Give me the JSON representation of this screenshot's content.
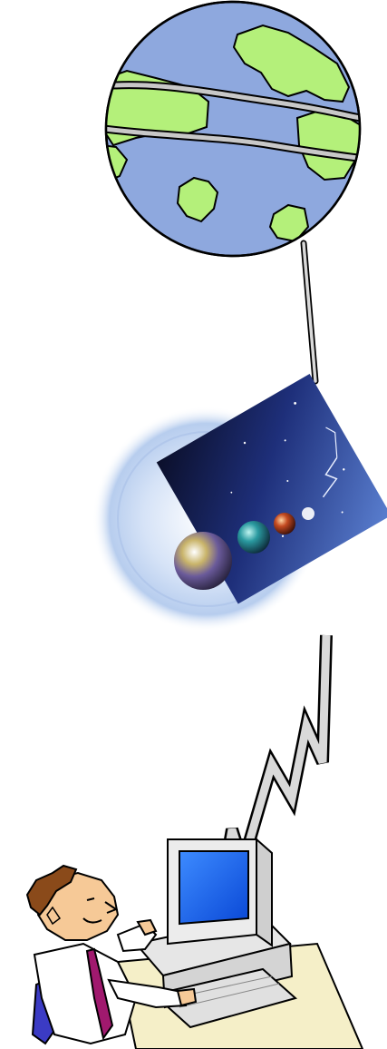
{
  "scene": {
    "globe": {
      "ocean_color": "#8ea8de",
      "land_color": "#b4f07a",
      "outline_color": "#000000",
      "band_color": "#c8c8c8"
    },
    "cosmic_graphic": {
      "glow_color": "#cbdcf5",
      "panel_color": "#1b2a6e",
      "spheres": [
        "multicolor-sphere",
        "teal-sphere",
        "red-sphere"
      ]
    },
    "connection_lines": {
      "color": "#d9d9d9",
      "outline_color": "#000000"
    },
    "computer": {
      "body_color": "#ececec",
      "screen_color": "#1d6af2"
    },
    "person": {
      "hair_color": "#8a4a1a",
      "skin_color": "#f6c997",
      "shirt_color": "#ffffff",
      "tie_color": "#a0196e",
      "chair_color": "#3b3bc4",
      "desk_color": "#f5efc8"
    }
  }
}
